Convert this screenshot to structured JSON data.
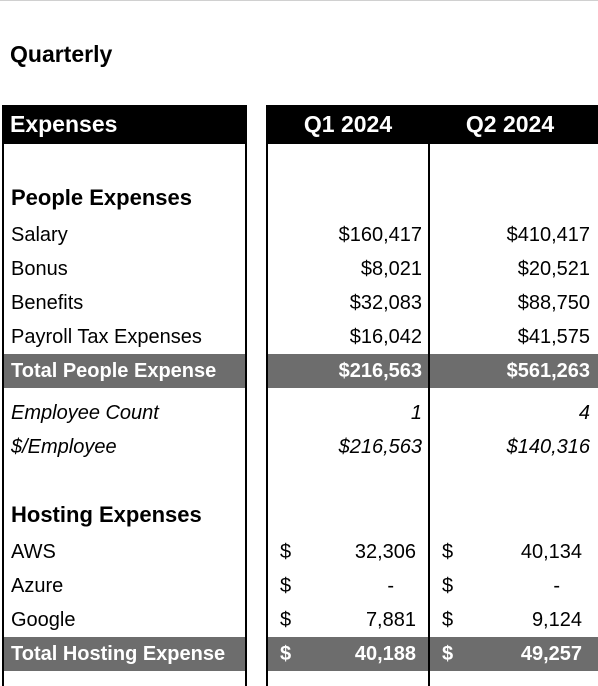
{
  "title": "Quarterly",
  "header": {
    "label": "Expenses",
    "q1": "Q1 2024",
    "q2": "Q2 2024"
  },
  "people": {
    "section": "People Expenses",
    "rows": [
      {
        "label": "Salary",
        "q1": "$160,417",
        "q2": "$410,417"
      },
      {
        "label": "Bonus",
        "q1": "$8,021",
        "q2": "$20,521"
      },
      {
        "label": "Benefits",
        "q1": "$32,083",
        "q2": "$88,750"
      },
      {
        "label": "Payroll Tax Expenses",
        "q1": "$16,042",
        "q2": "$41,575"
      }
    ],
    "total": {
      "label": "Total People Expense",
      "q1": "$216,563",
      "q2": "$561,263"
    }
  },
  "employees": {
    "count": {
      "label": "Employee Count",
      "q1": "1",
      "q2": "4"
    },
    "per": {
      "label": "$/Employee",
      "q1": "$216,563",
      "q2": "$140,316"
    }
  },
  "hosting": {
    "section": "Hosting Expenses",
    "currency": "$",
    "rows": [
      {
        "label": "AWS",
        "q1": "32,306",
        "q2": "40,134"
      },
      {
        "label": "Azure",
        "q1": "-",
        "q2": "-"
      },
      {
        "label": "Google",
        "q1": "7,881",
        "q2": "9,124"
      }
    ],
    "total": {
      "label": "Total Hosting Expense",
      "q1": "40,188",
      "q2": "49,257"
    }
  }
}
